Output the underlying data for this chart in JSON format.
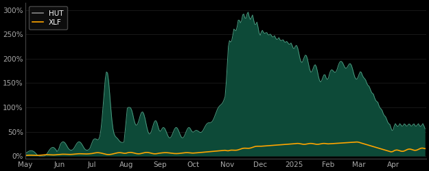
{
  "background_color": "#000000",
  "plot_bg_color": "#000000",
  "hut_fill_color": "#0d4a38",
  "hut_line_color": "#4a9a80",
  "xlf_line_color": "#FFA500",
  "legend_hut_color": "#888888",
  "yticks": [
    0,
    50,
    100,
    150,
    200,
    250,
    300
  ],
  "x_labels": [
    "May",
    "Jun",
    "Jul",
    "Aug",
    "Sep",
    "Oct",
    "Nov",
    "Dec",
    "2025",
    "Feb",
    "Mar",
    "Apr"
  ],
  "hut_legend": "HUT",
  "xlf_legend": "XLF",
  "n_months": [
    31,
    30,
    31,
    31,
    30,
    31,
    30,
    31,
    31,
    28,
    31,
    30
  ]
}
